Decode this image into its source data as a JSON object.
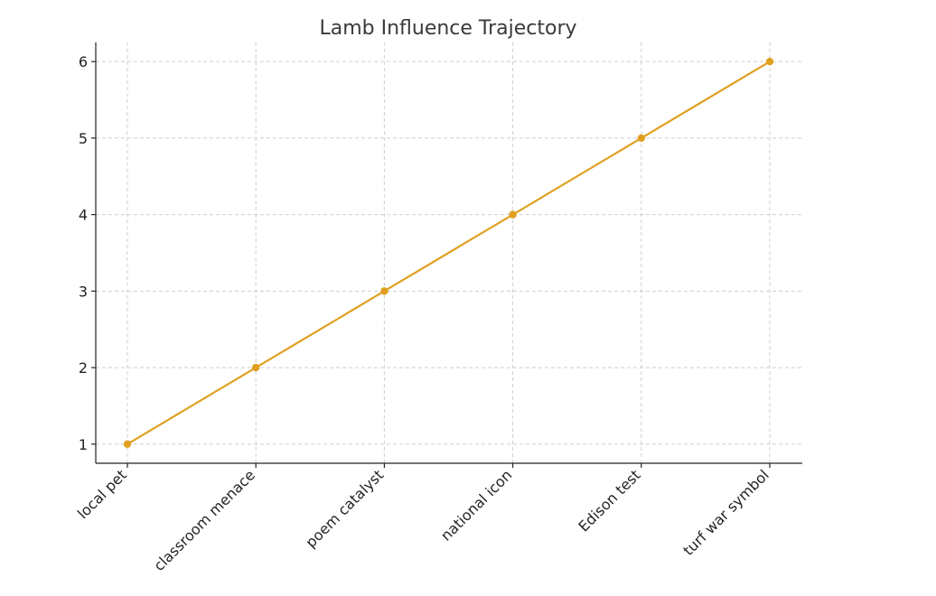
{
  "chart_data": {
    "type": "line",
    "title": "Lamb Influence Trajectory",
    "xlabel": "",
    "ylabel": "",
    "categories": [
      "local pet",
      "classroom menace",
      "poem catalyst",
      "national icon",
      "Edison test",
      "turf war symbol"
    ],
    "series": [
      {
        "values": [
          1,
          2,
          3,
          4,
          5,
          6
        ],
        "color": "#e0a020"
      }
    ],
    "y_ticks": [
      1,
      2,
      3,
      4,
      5,
      6
    ],
    "ylim": [
      0.75,
      6.25
    ],
    "grid": true,
    "legend": "none"
  }
}
